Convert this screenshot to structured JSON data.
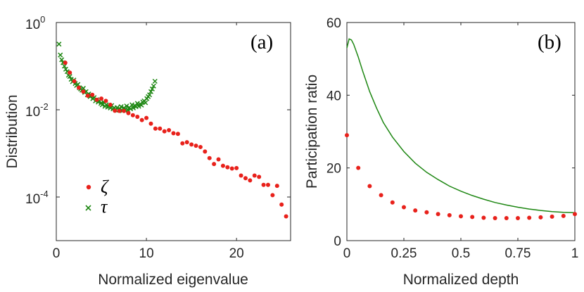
{
  "chart_data": [
    {
      "panel": "(a)",
      "type": "scatter",
      "xlabel": "Normalized eigenvalue",
      "ylabel": "Distribution",
      "yscale": "log",
      "xlim": [
        0,
        26
      ],
      "ylim": [
        1e-05,
        1
      ],
      "xticks": [
        0,
        10,
        20
      ],
      "xtick_labels": [
        "0",
        "10",
        "20"
      ],
      "yticks": [
        1,
        0.01,
        0.0001
      ],
      "ytick_labels": [
        {
          "base": "10",
          "exp": "0"
        },
        {
          "base": "10",
          "exp": "-2"
        },
        {
          "base": "10",
          "exp": "-4"
        }
      ],
      "legend": {
        "position": "bottom-left",
        "entries": [
          "ζ",
          "τ"
        ]
      },
      "series": [
        {
          "name": "ζ",
          "marker": "dot",
          "color": "#e8211b",
          "x": [
            1.0,
            1.5,
            2.0,
            2.5,
            3.0,
            3.5,
            4.0,
            4.5,
            5.0,
            5.5,
            6.0,
            6.5,
            7.0,
            7.5,
            8.0,
            8.5,
            9.0,
            9.5,
            10.0,
            10.5,
            11.0,
            11.5,
            12.0,
            12.5,
            13.0,
            13.5,
            14.0,
            14.5,
            15.0,
            15.5,
            16.0,
            16.5,
            17.0,
            17.5,
            18.0,
            18.5,
            19.0,
            19.5,
            20.0,
            20.5,
            21.0,
            21.5,
            22.0,
            22.5,
            23.0,
            23.5,
            24.0,
            24.5,
            25.0,
            25.5
          ],
          "y": [
            0.12,
            0.071,
            0.045,
            0.032,
            0.026,
            0.021,
            0.022,
            0.017,
            0.018,
            0.016,
            0.013,
            0.0095,
            0.0094,
            0.0094,
            0.0084,
            0.0075,
            0.0069,
            0.0058,
            0.0065,
            0.0048,
            0.0037,
            0.0037,
            0.0032,
            0.0034,
            0.0029,
            0.0028,
            0.0017,
            0.0018,
            0.0016,
            0.0015,
            0.0014,
            0.0011,
            0.00078,
            0.00057,
            0.00073,
            0.00052,
            0.00048,
            0.00045,
            0.00046,
            0.00031,
            0.00027,
            0.00024,
            0.00031,
            0.00029,
            0.00019,
            0.00019,
            0.00011,
            0.00018,
            6.7e-05,
            3.6e-05
          ]
        },
        {
          "name": "τ",
          "marker": "x",
          "color": "#1e8713",
          "x": [
            0.3,
            0.45,
            0.6,
            0.75,
            0.9,
            1.05,
            1.2,
            1.35,
            1.5,
            1.65,
            1.8,
            1.95,
            2.1,
            2.25,
            2.4,
            2.55,
            2.7,
            2.85,
            3.0,
            3.15,
            3.3,
            3.45,
            3.6,
            3.75,
            3.9,
            4.05,
            4.2,
            4.35,
            4.5,
            4.65,
            4.8,
            4.95,
            5.1,
            5.25,
            5.4,
            5.55,
            5.7,
            5.85,
            6.0,
            6.15,
            6.3,
            6.45,
            6.6,
            6.75,
            6.9,
            7.05,
            7.2,
            7.35,
            7.5,
            7.65,
            7.8,
            7.95,
            8.1,
            8.25,
            8.4,
            8.55,
            8.7,
            8.85,
            9.0,
            9.15,
            9.3,
            9.45,
            9.6,
            9.75,
            9.9,
            10.05,
            10.2,
            10.35,
            10.5,
            10.65,
            10.8,
            10.95
          ],
          "y": [
            0.32,
            0.18,
            0.14,
            0.12,
            0.1,
            0.085,
            0.075,
            0.062,
            0.058,
            0.05,
            0.044,
            0.048,
            0.04,
            0.036,
            0.038,
            0.032,
            0.03,
            0.028,
            0.031,
            0.025,
            0.026,
            0.022,
            0.023,
            0.02,
            0.021,
            0.018,
            0.019,
            0.016,
            0.017,
            0.015,
            0.016,
            0.014,
            0.013,
            0.015,
            0.012,
            0.013,
            0.0115,
            0.012,
            0.011,
            0.0125,
            0.0105,
            0.011,
            0.0098,
            0.0112,
            0.01,
            0.0105,
            0.0118,
            0.0095,
            0.011,
            0.0103,
            0.0122,
            0.0098,
            0.0112,
            0.0105,
            0.013,
            0.011,
            0.0125,
            0.0118,
            0.014,
            0.012,
            0.0135,
            0.0128,
            0.015,
            0.016,
            0.0145,
            0.018,
            0.02,
            0.022,
            0.026,
            0.03,
            0.035,
            0.045
          ]
        }
      ]
    },
    {
      "panel": "(b)",
      "type": "line+scatter",
      "xlabel": "Normalized depth",
      "ylabel": "Participation ratio",
      "xlim": [
        0,
        1
      ],
      "ylim": [
        0,
        60
      ],
      "xticks": [
        0,
        0.25,
        0.5,
        0.75,
        1
      ],
      "xtick_labels": [
        "0",
        "0.25",
        "0.5",
        "0.75",
        "1"
      ],
      "yticks": [
        0,
        20,
        40,
        60
      ],
      "ytick_labels": [
        "0",
        "20",
        "40",
        "60"
      ],
      "series": [
        {
          "name": "line",
          "marker": "line",
          "color": "#1e8713",
          "x": [
            0,
            0.01,
            0.02,
            0.03,
            0.05,
            0.07,
            0.1,
            0.13,
            0.16,
            0.2,
            0.25,
            0.3,
            0.35,
            0.4,
            0.45,
            0.5,
            0.55,
            0.6,
            0.65,
            0.7,
            0.75,
            0.8,
            0.85,
            0.9,
            0.95,
            1.0
          ],
          "y": [
            53,
            55.5,
            55.2,
            54,
            50.5,
            46.5,
            41,
            36.5,
            32.5,
            28.5,
            24.5,
            21.3,
            18.8,
            16.8,
            15.0,
            13.6,
            12.4,
            11.4,
            10.5,
            9.8,
            9.2,
            8.7,
            8.3,
            8.0,
            7.8,
            7.7
          ]
        },
        {
          "name": "dots",
          "marker": "dot",
          "color": "#e8211b",
          "x": [
            0,
            0.05,
            0.1,
            0.15,
            0.2,
            0.25,
            0.3,
            0.35,
            0.4,
            0.45,
            0.5,
            0.55,
            0.6,
            0.65,
            0.7,
            0.75,
            0.8,
            0.85,
            0.9,
            0.95,
            1.0
          ],
          "y": [
            29,
            20,
            15,
            12.5,
            10.5,
            9.2,
            8.3,
            7.8,
            7.3,
            7.0,
            6.7,
            6.5,
            6.3,
            6.2,
            6.2,
            6.2,
            6.3,
            6.4,
            6.6,
            6.8,
            7.3
          ]
        }
      ]
    }
  ]
}
